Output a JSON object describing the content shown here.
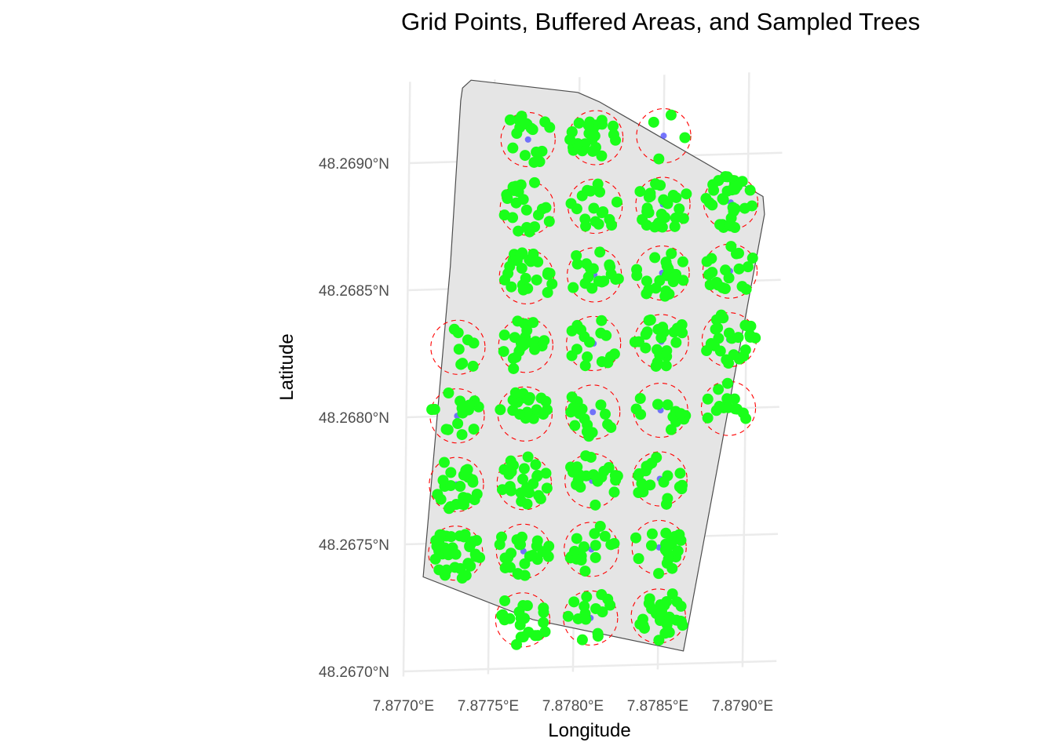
{
  "chart_data": {
    "type": "scatter",
    "title": "Grid Points, Buffered Areas, and Sampled Trees",
    "xlabel": "Longitude",
    "ylabel": "Latitude",
    "xlim": [
      7.877,
      7.8792
    ],
    "ylim": [
      48.26698,
      48.26932
    ],
    "grid": true,
    "x_ticks": [
      7.877,
      7.8775,
      7.878,
      7.8785,
      7.879
    ],
    "x_tick_labels": [
      "7.8770°E",
      "7.8775°E",
      "7.8780°E",
      "7.8785°E",
      "7.8790°E"
    ],
    "y_ticks": [
      48.267,
      48.2675,
      48.268,
      48.2685,
      48.269
    ],
    "y_tick_labels": [
      "48.2670°N",
      "48.2675°N",
      "48.2680°N",
      "48.2685°N",
      "48.2690°N"
    ],
    "boundary": {
      "fill": "#e5e5e5",
      "stroke": "#4d4d4d",
      "lon": [
        7.87731,
        7.87736,
        7.87799,
        7.87812,
        7.87832,
        7.87909,
        7.8791,
        7.87865,
        7.87776,
        7.87711,
        7.87725,
        7.8773
      ],
      "lat": [
        48.26929,
        48.26932,
        48.26926,
        48.26922,
        48.26914,
        48.26883,
        48.26876,
        48.26705,
        48.26719,
        48.26737,
        48.26859,
        48.26924
      ]
    },
    "grid_points": {
      "color": "#4a4aff",
      "buffer_color": "#ff0000",
      "buffer_radius_deg": 0.00016,
      "lon": [
        7.8777,
        7.8781,
        7.8785,
        7.8777,
        7.8781,
        7.8785,
        7.8789,
        7.8777,
        7.8781,
        7.8785,
        7.8789,
        7.8773,
        7.8777,
        7.8781,
        7.8785,
        7.8789,
        7.8773,
        7.8777,
        7.8781,
        7.8785,
        7.8789,
        7.8773,
        7.8777,
        7.8781,
        7.8785,
        7.8773,
        7.8777,
        7.8781,
        7.8785,
        7.8777,
        7.8781,
        7.8785
      ],
      "lat": [
        48.26908,
        48.26908,
        48.26908,
        48.26881,
        48.26881,
        48.26881,
        48.26881,
        48.26854,
        48.26854,
        48.26854,
        48.26854,
        48.26827,
        48.26827,
        48.26827,
        48.26827,
        48.26827,
        48.268,
        48.268,
        48.268,
        48.268,
        48.268,
        48.26773,
        48.26773,
        48.26773,
        48.26773,
        48.26746,
        48.26746,
        48.26746,
        48.26746,
        48.26719,
        48.26719,
        48.26719
      ]
    },
    "sampled_trees": {
      "color": "#1aff1a",
      "per_buffer": [
        17,
        26,
        4,
        21,
        17,
        26,
        30,
        25,
        18,
        22,
        19,
        8,
        21,
        16,
        24,
        26,
        15,
        18,
        16,
        12,
        14,
        23,
        26,
        20,
        20,
        35,
        23,
        16,
        20,
        22,
        15,
        29
      ]
    }
  }
}
